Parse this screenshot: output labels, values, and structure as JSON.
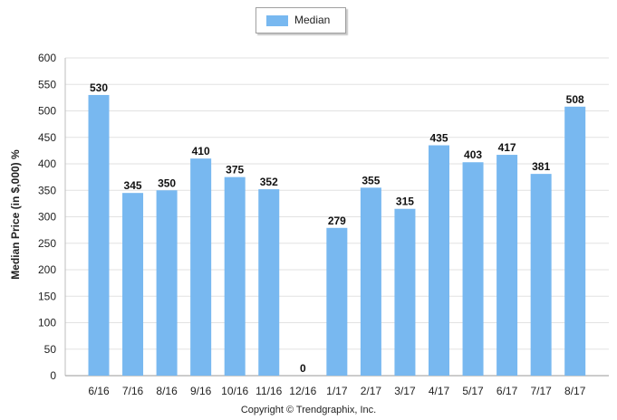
{
  "chart_data": {
    "type": "bar",
    "categories": [
      "6/16",
      "7/16",
      "8/16",
      "9/16",
      "10/16",
      "11/16",
      "12/16",
      "1/17",
      "2/17",
      "3/17",
      "4/17",
      "5/17",
      "6/17",
      "7/17",
      "8/17"
    ],
    "series": [
      {
        "name": "Median",
        "values": [
          530,
          345,
          350,
          410,
          375,
          352,
          0,
          279,
          355,
          315,
          435,
          403,
          417,
          381,
          508
        ]
      }
    ],
    "ylabel": "Median Price (in $,000) %",
    "ylim": [
      0,
      600
    ],
    "yticks": [
      0,
      50,
      100,
      150,
      200,
      250,
      300,
      350,
      400,
      450,
      500,
      550,
      600
    ],
    "grid": true,
    "legend": "top-center",
    "bar_color": "#78b8f0"
  },
  "footer": {
    "copyright": "Copyright © Trendgraphix, Inc."
  }
}
